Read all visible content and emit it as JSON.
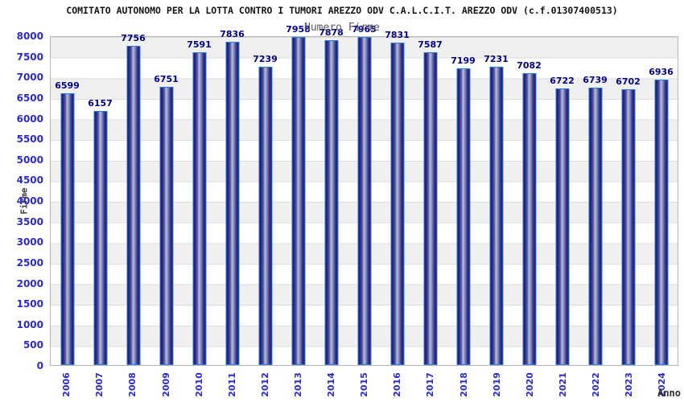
{
  "header": {
    "title": "COMITATO AUTONOMO PER LA LOTTA CONTRO I TUMORI AREZZO ODV C.A.L.C.I.T. AREZZO ODV (c.f.01307400513)",
    "subtitle": "Numero Firme"
  },
  "chart_data": {
    "type": "bar",
    "title": "COMITATO AUTONOMO PER LA LOTTA CONTRO I TUMORI AREZZO ODV C.A.L.C.I.T. AREZZO ODV (c.f.01307400513)",
    "subtitle": "Numero Firme",
    "xlabel": "Anno",
    "ylabel": "Firme",
    "categories": [
      "2006",
      "2007",
      "2008",
      "2009",
      "2010",
      "2011",
      "2012",
      "2013",
      "2014",
      "2015",
      "2016",
      "2017",
      "2018",
      "2019",
      "2020",
      "2021",
      "2022",
      "2023",
      "2024"
    ],
    "values": [
      6599,
      6157,
      7756,
      6751,
      7591,
      7836,
      7239,
      7958,
      7878,
      7965,
      7831,
      7587,
      7199,
      7231,
      7082,
      6722,
      6739,
      6702,
      6936
    ],
    "value_labels_shown": true,
    "ylim": [
      0,
      8000
    ],
    "yticks": [
      0,
      500,
      1000,
      1500,
      2000,
      2500,
      3000,
      3500,
      4000,
      4500,
      5000,
      5500,
      6000,
      6500,
      7000,
      7500,
      8000
    ],
    "x_tick_rotation_deg": 90,
    "grid": "horizontal-bands-every-500",
    "legend": "none",
    "colors": {
      "bar_border": "#2b7be0",
      "bar_dark": "#1b1b72",
      "bar_light": "#b9bfdc",
      "tick_label_blue": "#2a2acc",
      "value_label_navy": "#000082",
      "band_gray": "#f0f0f1",
      "subtitle_gray": "#55585e",
      "plot_border": "#b6b6b6"
    }
  }
}
